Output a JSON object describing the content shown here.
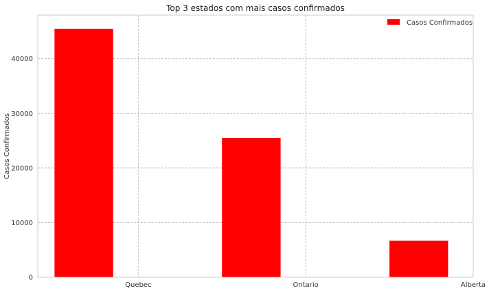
{
  "chart_data": {
    "type": "bar",
    "title": "Top 3 estados com mais casos confirmados",
    "xlabel": "",
    "ylabel": "Casos Confirmados",
    "categories": [
      "Quebec",
      "Ontario",
      "Alberta"
    ],
    "series": [
      {
        "name": "Casos Confirmados",
        "values": [
          45500,
          25500,
          6700
        ],
        "color": "#ff0000"
      }
    ],
    "ylim": [
      0,
      48000
    ],
    "yticks": [
      0,
      10000,
      20000,
      30000,
      40000
    ],
    "ytick_labels": [
      "0",
      "10000",
      "20000",
      "30000",
      "40000"
    ],
    "grid": true,
    "grid_style": "dashed",
    "legend_position": "top-right"
  }
}
